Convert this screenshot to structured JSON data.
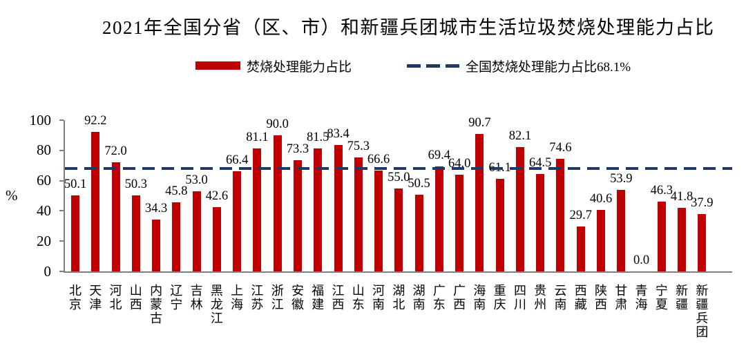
{
  "chart_data": {
    "type": "bar",
    "title": "2021年全国分省（区、市）和新疆兵团城市生活垃圾焚烧处理能力占比",
    "ylabel": "%",
    "ylim": [
      0,
      100
    ],
    "yticks": [
      0,
      20,
      40,
      60,
      80,
      100
    ],
    "grid": false,
    "legend_position": "top",
    "categories": [
      "北京",
      "天津",
      "河北",
      "山西",
      "内蒙古",
      "辽宁",
      "吉林",
      "黑龙江",
      "上海",
      "江苏",
      "浙江",
      "安徽",
      "福建",
      "江西",
      "山东",
      "河南",
      "湖北",
      "湖南",
      "广东",
      "广西",
      "海南",
      "重庆",
      "四川",
      "贵州",
      "云南",
      "西藏",
      "陕西",
      "甘肃",
      "青海",
      "宁夏",
      "新疆",
      "新疆兵团"
    ],
    "series": [
      {
        "name": "焚烧处理能力占比",
        "values": [
          50.1,
          92.2,
          72.0,
          50.3,
          34.3,
          45.8,
          53.0,
          42.6,
          66.4,
          81.1,
          90.0,
          73.3,
          81.5,
          83.4,
          75.3,
          66.6,
          55.0,
          50.5,
          69.4,
          64.0,
          90.7,
          61.1,
          82.1,
          64.5,
          74.6,
          29.7,
          40.6,
          53.9,
          0.0,
          46.3,
          41.8,
          37.9
        ]
      }
    ],
    "reference_line": {
      "value": 68.1,
      "label": "全国焚烧处理能力占比68.1%"
    },
    "legend": {
      "bar_label": "焚烧处理能力占比",
      "line_label": "全国焚烧处理能力占比68.1%"
    },
    "colors": {
      "bar": "#c00000",
      "reference_line": "#1f3864",
      "axis": "#7f7f7f",
      "text": "#000000"
    },
    "value_label_decimals": 1
  }
}
